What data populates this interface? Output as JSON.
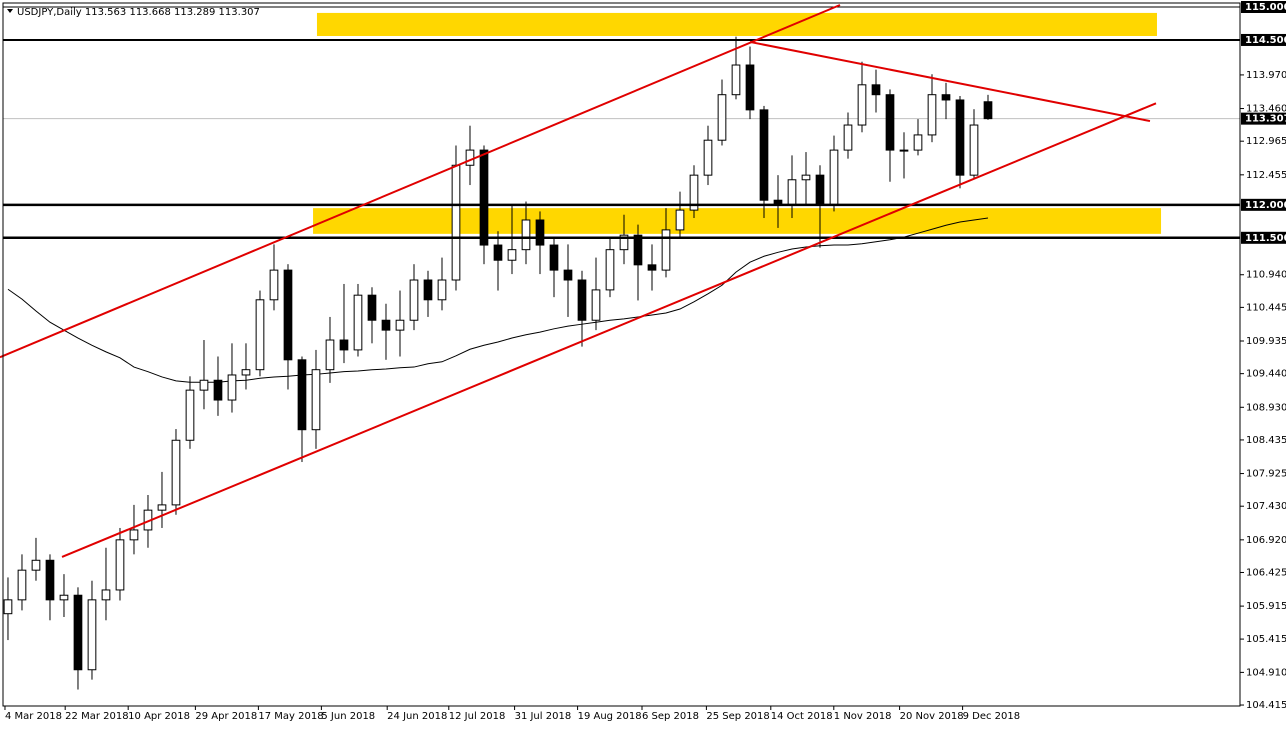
{
  "chart_data": {
    "type": "candlestick",
    "title": "USDJPY,Daily",
    "open": [
      105.8,
      106.01,
      106.46,
      106.61,
      106.01,
      106.08,
      104.95,
      106.01,
      106.16,
      106.92,
      107.07,
      107.37,
      107.45,
      108.43,
      109.19,
      109.34,
      109.04,
      109.42,
      109.5,
      110.56,
      111.01,
      109.65,
      108.59,
      109.5,
      109.95,
      109.8,
      110.63,
      110.25,
      110.1,
      110.25,
      110.86,
      110.56,
      110.86,
      112.6,
      112.83,
      111.39,
      111.16,
      111.32,
      111.77,
      111.39,
      111.01,
      110.86,
      110.25,
      110.71,
      111.32,
      111.54,
      111.09,
      111.01,
      111.62,
      111.92,
      112.45,
      112.98,
      113.67,
      114.12,
      113.44,
      112.07,
      112.0,
      112.38,
      112.45,
      112.0,
      112.83,
      113.21,
      113.82,
      113.67,
      112.83,
      112.83,
      113.06,
      113.67,
      113.59,
      112.45,
      113.563
    ],
    "high": [
      106.35,
      106.7,
      106.95,
      106.7,
      106.4,
      106.2,
      106.3,
      106.8,
      107.1,
      107.45,
      107.6,
      107.95,
      108.6,
      109.4,
      109.95,
      109.7,
      109.9,
      109.9,
      110.7,
      111.4,
      111.1,
      109.7,
      109.8,
      110.3,
      110.8,
      110.8,
      110.75,
      110.5,
      110.7,
      111.1,
      111.0,
      111.2,
      112.9,
      113.2,
      112.9,
      111.6,
      112.0,
      112.05,
      111.9,
      111.5,
      111.4,
      111.0,
      111.2,
      111.5,
      111.85,
      111.7,
      111.4,
      111.95,
      112.2,
      112.6,
      113.2,
      113.9,
      114.55,
      114.4,
      113.5,
      112.45,
      112.75,
      112.8,
      112.6,
      113.05,
      113.4,
      114.17,
      114.05,
      113.75,
      113.1,
      113.3,
      113.98,
      113.85,
      113.65,
      113.45,
      113.668
    ],
    "low": [
      105.4,
      105.85,
      106.3,
      105.7,
      105.75,
      104.65,
      104.8,
      105.7,
      106.0,
      106.7,
      106.8,
      107.1,
      107.3,
      108.3,
      108.9,
      108.8,
      108.85,
      109.2,
      109.4,
      110.4,
      109.2,
      108.1,
      108.3,
      109.3,
      109.6,
      109.7,
      109.9,
      109.65,
      109.7,
      110.1,
      110.3,
      110.4,
      110.7,
      112.3,
      111.1,
      110.7,
      110.95,
      111.1,
      110.95,
      110.6,
      110.3,
      109.85,
      110.1,
      110.6,
      111.1,
      110.55,
      110.7,
      110.9,
      111.5,
      111.8,
      112.3,
      112.9,
      113.6,
      113.3,
      111.8,
      111.65,
      111.8,
      112.0,
      111.35,
      111.9,
      112.7,
      113.1,
      113.4,
      112.35,
      112.4,
      112.75,
      112.95,
      113.3,
      112.25,
      112.4,
      113.289
    ],
    "close": [
      106.01,
      106.46,
      106.61,
      106.01,
      106.08,
      104.95,
      106.01,
      106.16,
      106.92,
      107.07,
      107.37,
      107.45,
      108.43,
      109.19,
      109.34,
      109.04,
      109.42,
      109.5,
      110.56,
      111.01,
      109.65,
      108.59,
      109.5,
      109.95,
      109.8,
      110.63,
      110.25,
      110.1,
      110.25,
      110.86,
      110.56,
      110.86,
      112.6,
      112.83,
      111.39,
      111.16,
      111.32,
      111.77,
      111.39,
      111.01,
      110.86,
      110.25,
      110.71,
      111.32,
      111.54,
      111.09,
      111.01,
      111.62,
      111.92,
      112.45,
      112.98,
      113.67,
      114.12,
      113.44,
      112.07,
      112.0,
      112.38,
      112.45,
      112.0,
      112.83,
      113.21,
      113.82,
      113.67,
      112.83,
      112.83,
      113.06,
      113.67,
      113.59,
      112.45,
      113.21,
      113.307
    ],
    "ma": {
      "color": "#000000",
      "values": [
        110.72,
        110.57,
        110.39,
        110.22,
        110.1,
        109.98,
        109.87,
        109.77,
        109.68,
        109.54,
        109.47,
        109.39,
        109.33,
        109.31,
        109.31,
        109.31,
        109.33,
        109.34,
        109.37,
        109.39,
        109.4,
        109.42,
        109.43,
        109.45,
        109.47,
        109.48,
        109.5,
        109.51,
        109.53,
        109.54,
        109.59,
        109.62,
        109.71,
        109.81,
        109.87,
        109.92,
        109.98,
        110.03,
        110.07,
        110.12,
        110.16,
        110.19,
        110.22,
        110.25,
        110.27,
        110.3,
        110.33,
        110.36,
        110.42,
        110.53,
        110.65,
        110.78,
        110.98,
        111.13,
        111.22,
        111.28,
        111.33,
        111.36,
        111.38,
        111.39,
        111.39,
        111.41,
        111.44,
        111.47,
        111.51,
        111.57,
        111.63,
        111.69,
        111.74,
        111.77,
        111.8
      ]
    },
    "up_color": "#ffffff",
    "down_color": "#000000",
    "xlim": [
      -0.57,
      88
    ],
    "ylim": [
      104.37,
      115.106
    ],
    "xticks": [
      {
        "value": 0,
        "label": "4 Mar 2018"
      },
      {
        "value": 4.3,
        "label": "22 Mar 2018"
      },
      {
        "value": 8.8,
        "label": "10 Apr 2018"
      },
      {
        "value": 13.6,
        "label": "29 Apr 2018"
      },
      {
        "value": 18.1,
        "label": "17 May 2018"
      },
      {
        "value": 22.6,
        "label": "5 Jun 2018"
      },
      {
        "value": 27.3,
        "label": "24 Jun 2018"
      },
      {
        "value": 31.7,
        "label": "12 Jul 2018"
      },
      {
        "value": 36.4,
        "label": "31 Jul 2018"
      },
      {
        "value": 40.9,
        "label": "19 Aug 2018"
      },
      {
        "value": 45.5,
        "label": "6 Sep 2018"
      },
      {
        "value": 50.1,
        "label": "25 Sep 2018"
      },
      {
        "value": 54.7,
        "label": "14 Oct 2018"
      },
      {
        "value": 59.2,
        "label": "1 Nov 2018"
      },
      {
        "value": 63.9,
        "label": "20 Nov 2018"
      },
      {
        "value": 68.4,
        "label": "9 Dec 2018"
      }
    ],
    "yticks": [
      {
        "value": 113.97,
        "label": "113.970"
      },
      {
        "value": 113.46,
        "label": "113.460"
      },
      112.965,
      112.455,
      {
        "value": 110.94,
        "label": "110.940"
      },
      110.445,
      109.935,
      {
        "value": 109.44,
        "label": "109.440"
      },
      {
        "value": 108.93,
        "label": "108.930"
      },
      108.435,
      107.925,
      {
        "value": 107.43,
        "label": "107.430"
      },
      {
        "value": 106.92,
        "label": "106.920"
      },
      106.425,
      105.915,
      105.415,
      {
        "value": 104.91,
        "label": "104.910"
      },
      104.415
    ],
    "levels": [
      {
        "value": 115,
        "label": "115.000",
        "width": 1
      },
      {
        "value": 114.5,
        "label": "114.500",
        "width": 2
      },
      {
        "value": 112,
        "label": "112.000",
        "width": 2.5
      },
      {
        "value": 111.5,
        "label": "111.500",
        "width": 2.5
      }
    ],
    "zone_color": "#ffd700",
    "zones": [
      {
        "x": [
          22.07,
          82.07
        ],
        "y": [
          114.56,
          114.91
        ]
      },
      {
        "x": [
          21.79,
          82.36
        ],
        "y": [
          111.56,
          111.95
        ]
      }
    ],
    "trendline_color": "#e00000",
    "trendlines": [
      {
        "x": [
          -0.57,
          59.43
        ],
        "y": [
          109.69,
          115.03
        ]
      },
      {
        "x": [
          3.86,
          82.0
        ],
        "y": [
          106.66,
          113.54
        ]
      },
      {
        "x": [
          53.0,
          81.57
        ],
        "y": [
          114.47,
          113.27
        ]
      }
    ]
  }
}
